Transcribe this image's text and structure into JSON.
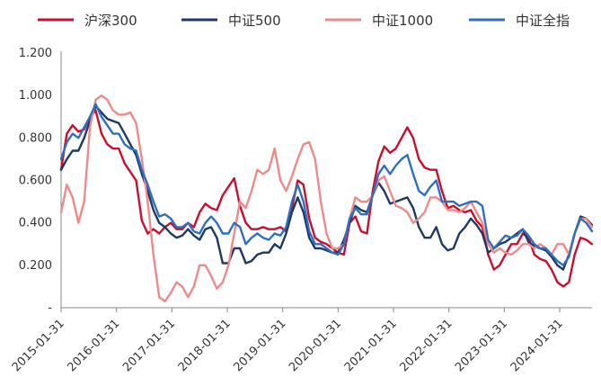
{
  "chart_data": {
    "type": "line",
    "title": "",
    "xlabel": "",
    "ylabel": "",
    "ylim": [
      0,
      1.2
    ],
    "yticks": [
      {
        "value": 0,
        "label": "-"
      },
      {
        "value": 0.2,
        "label": "0.200"
      },
      {
        "value": 0.4,
        "label": "0.400"
      },
      {
        "value": 0.6,
        "label": "0.600"
      },
      {
        "value": 0.8,
        "label": "0.800"
      },
      {
        "value": 1.0,
        "label": "1.000"
      },
      {
        "value": 1.2,
        "label": "1.200"
      }
    ],
    "xticks": [
      "2015-01-31",
      "2016-01-31",
      "2017-01-31",
      "2018-01-31",
      "2019-01-31",
      "2020-01-31",
      "2021-01-31",
      "2022-01-31",
      "2023-01-31",
      "2024-01-31"
    ],
    "x_start": "2015-01",
    "x_end": "2024-08",
    "legend_position": "top",
    "grid": false,
    "series": [
      {
        "name": "沪深300",
        "color": "#C8102E",
        "values": [
          0.65,
          0.82,
          0.86,
          0.83,
          0.84,
          0.9,
          0.93,
          0.82,
          0.77,
          0.75,
          0.75,
          0.68,
          0.64,
          0.6,
          0.41,
          0.35,
          0.37,
          0.35,
          0.38,
          0.4,
          0.37,
          0.37,
          0.4,
          0.38,
          0.45,
          0.49,
          0.47,
          0.46,
          0.53,
          0.57,
          0.61,
          0.48,
          0.4,
          0.37,
          0.37,
          0.38,
          0.37,
          0.37,
          0.38,
          0.36,
          0.47,
          0.6,
          0.58,
          0.42,
          0.33,
          0.31,
          0.3,
          0.28,
          0.26,
          0.25,
          0.4,
          0.43,
          0.36,
          0.35,
          0.55,
          0.69,
          0.76,
          0.73,
          0.75,
          0.8,
          0.85,
          0.8,
          0.7,
          0.66,
          0.65,
          0.65,
          0.55,
          0.47,
          0.48,
          0.46,
          0.45,
          0.46,
          0.41,
          0.38,
          0.25,
          0.18,
          0.2,
          0.25,
          0.3,
          0.3,
          0.35,
          0.33,
          0.25,
          0.23,
          0.22,
          0.18,
          0.12,
          0.1,
          0.12,
          0.25,
          0.33,
          0.32,
          0.3
        ]
      },
      {
        "name": "中证500",
        "color": "#1F3864",
        "values": [
          0.65,
          0.7,
          0.74,
          0.74,
          0.8,
          0.88,
          0.95,
          0.92,
          0.89,
          0.88,
          0.87,
          0.82,
          0.77,
          0.72,
          0.63,
          0.55,
          0.46,
          0.4,
          0.38,
          0.35,
          0.33,
          0.34,
          0.37,
          0.34,
          0.32,
          0.37,
          0.38,
          0.33,
          0.21,
          0.21,
          0.28,
          0.28,
          0.21,
          0.22,
          0.25,
          0.26,
          0.26,
          0.3,
          0.28,
          0.35,
          0.45,
          0.52,
          0.45,
          0.33,
          0.28,
          0.28,
          0.27,
          0.26,
          0.26,
          0.32,
          0.4,
          0.48,
          0.46,
          0.45,
          0.53,
          0.59,
          0.55,
          0.49,
          0.5,
          0.51,
          0.52,
          0.47,
          0.38,
          0.33,
          0.33,
          0.38,
          0.3,
          0.27,
          0.28,
          0.35,
          0.38,
          0.42,
          0.39,
          0.35,
          0.26,
          0.28,
          0.3,
          0.31,
          0.33,
          0.35,
          0.37,
          0.31,
          0.29,
          0.28,
          0.27,
          0.24,
          0.2,
          0.18,
          0.25,
          0.35,
          0.43,
          0.42,
          0.39
        ]
      },
      {
        "name": "中证1000",
        "color": "#EE8A8A",
        "values": [
          0.45,
          0.58,
          0.52,
          0.4,
          0.5,
          0.85,
          0.98,
          1.0,
          0.98,
          0.93,
          0.91,
          0.91,
          0.92,
          0.87,
          0.7,
          0.5,
          0.25,
          0.05,
          0.03,
          0.07,
          0.12,
          0.1,
          0.05,
          0.1,
          0.2,
          0.2,
          0.15,
          0.09,
          0.12,
          0.2,
          0.35,
          0.5,
          0.47,
          0.55,
          0.65,
          0.63,
          0.65,
          0.75,
          0.6,
          0.55,
          0.62,
          0.7,
          0.77,
          0.78,
          0.7,
          0.5,
          0.35,
          0.28,
          0.28,
          0.3,
          0.42,
          0.52,
          0.5,
          0.5,
          0.53,
          0.6,
          0.62,
          0.55,
          0.48,
          0.47,
          0.45,
          0.4,
          0.42,
          0.45,
          0.52,
          0.52,
          0.5,
          0.46,
          0.46,
          0.45,
          0.47,
          0.5,
          0.45,
          0.4,
          0.3,
          0.26,
          0.28,
          0.26,
          0.25,
          0.27,
          0.3,
          0.3,
          0.28,
          0.3,
          0.28,
          0.25,
          0.3,
          0.3,
          0.25,
          0.35,
          0.42,
          0.42,
          0.38
        ]
      },
      {
        "name": "中证全指",
        "color": "#2E6FC4",
        "values": [
          0.7,
          0.78,
          0.82,
          0.8,
          0.85,
          0.9,
          0.96,
          0.9,
          0.86,
          0.82,
          0.82,
          0.77,
          0.75,
          0.74,
          0.65,
          0.58,
          0.5,
          0.43,
          0.44,
          0.42,
          0.38,
          0.38,
          0.4,
          0.36,
          0.35,
          0.4,
          0.43,
          0.4,
          0.35,
          0.35,
          0.4,
          0.38,
          0.3,
          0.33,
          0.35,
          0.33,
          0.32,
          0.35,
          0.34,
          0.38,
          0.5,
          0.58,
          0.5,
          0.36,
          0.3,
          0.3,
          0.28,
          0.26,
          0.25,
          0.3,
          0.42,
          0.47,
          0.44,
          0.44,
          0.53,
          0.63,
          0.67,
          0.63,
          0.67,
          0.7,
          0.72,
          0.63,
          0.55,
          0.53,
          0.57,
          0.6,
          0.5,
          0.5,
          0.5,
          0.48,
          0.49,
          0.5,
          0.5,
          0.48,
          0.32,
          0.28,
          0.31,
          0.34,
          0.33,
          0.34,
          0.37,
          0.34,
          0.3,
          0.28,
          0.28,
          0.25,
          0.22,
          0.2,
          0.24,
          0.35,
          0.42,
          0.4,
          0.36
        ]
      }
    ]
  }
}
